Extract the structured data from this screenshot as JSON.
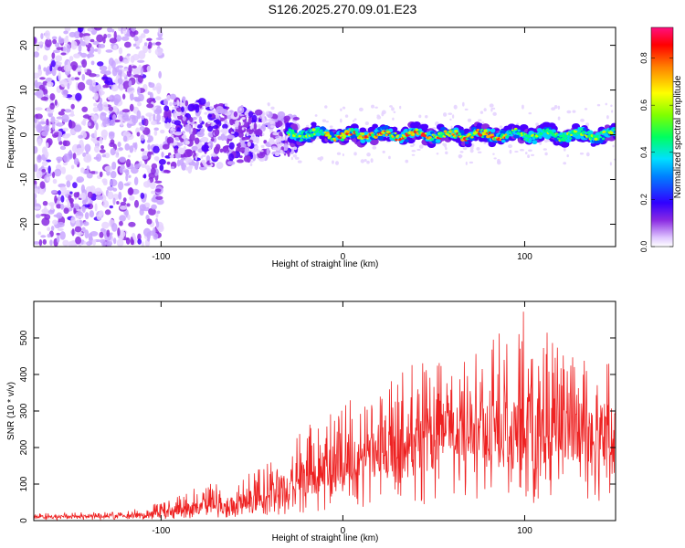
{
  "title": "S126.2025.270.09.01.E23",
  "chart_data": [
    {
      "type": "heatmap",
      "name": "spectrogram",
      "xlabel": "Height of straight line (km)",
      "ylabel": "Frequency (Hz)",
      "xlim": [
        -170,
        150
      ],
      "ylim": [
        -25,
        24
      ],
      "x_ticks": [
        -100,
        0,
        100
      ],
      "y_ticks": [
        -20,
        -10,
        0,
        10,
        20
      ],
      "colorbar": {
        "label": "Normalized spectral amplitude",
        "range": [
          0,
          0.93
        ],
        "ticks": [
          0,
          0.2,
          0.4,
          0.6,
          0.8
        ]
      },
      "description_values": {
        "signal_band_center_hz": 0,
        "signal_band_halfwidth_hz": 3,
        "coherent_signal_start_km": -30,
        "peak_amplitude_region_km": [
          -10,
          90
        ]
      }
    },
    {
      "type": "line",
      "name": "snr",
      "xlabel": "Height of straight line (km)",
      "ylabel": "SNR (10 * v/v)",
      "xlim": [
        -170,
        150
      ],
      "ylim": [
        0,
        600
      ],
      "x_ticks": [
        -100,
        0,
        100
      ],
      "y_ticks": [
        0,
        100,
        200,
        300,
        400,
        500
      ],
      "color": "#ee2222",
      "envelope": {
        "x": [
          -170,
          -120,
          -100,
          -80,
          -60,
          -40,
          -20,
          0,
          20,
          40,
          60,
          80,
          100,
          120,
          150
        ],
        "mean": [
          10,
          12,
          18,
          35,
          45,
          70,
          110,
          150,
          185,
          215,
          235,
          245,
          240,
          235,
          230
        ],
        "max": [
          20,
          25,
          50,
          95,
          110,
          160,
          260,
          330,
          360,
          450,
          430,
          480,
          590,
          480,
          460
        ]
      }
    }
  ]
}
